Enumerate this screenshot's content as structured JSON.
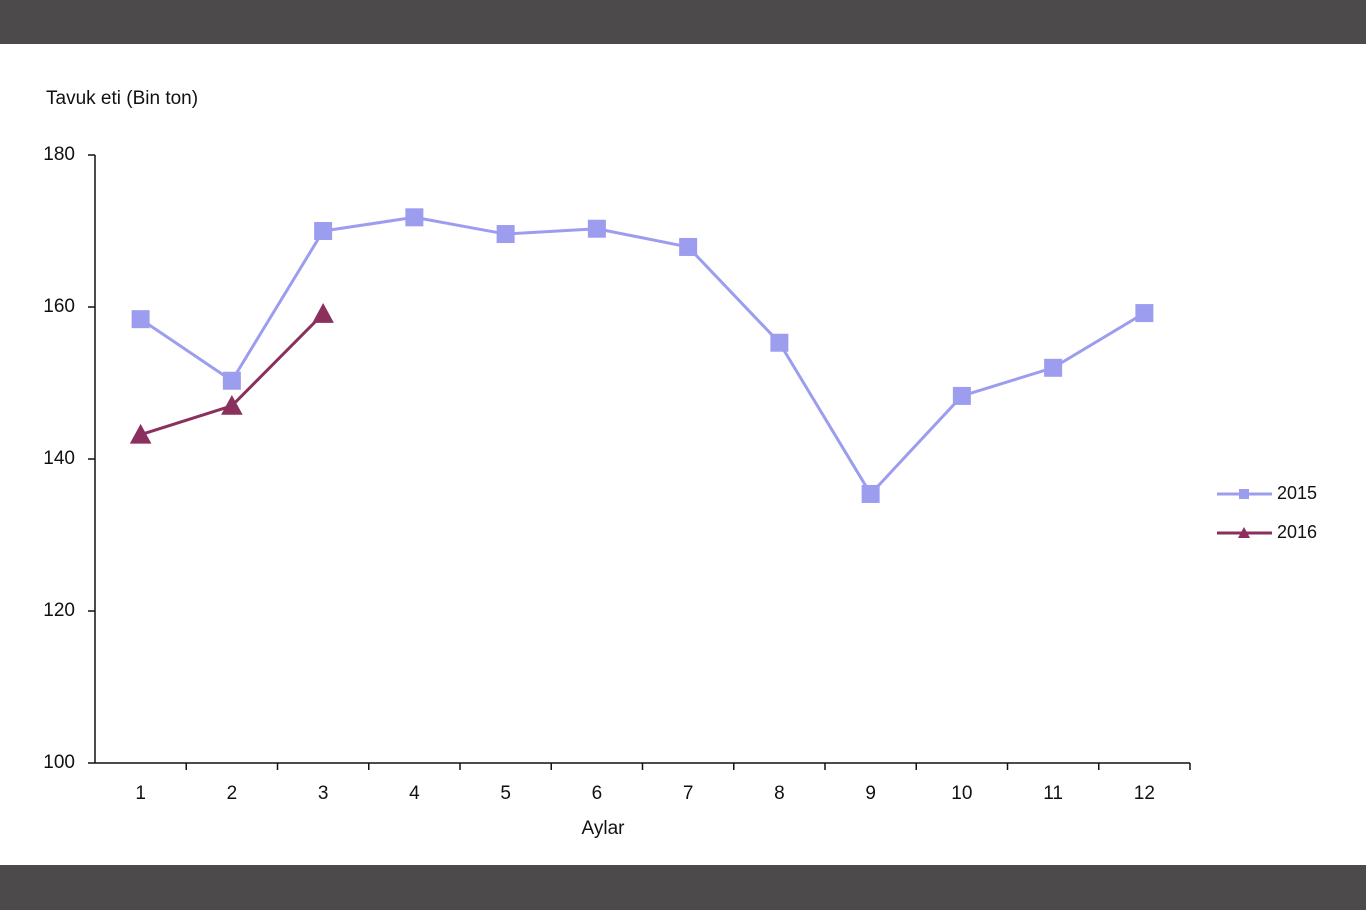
{
  "chart_data": {
    "type": "line",
    "y_label": "Tavuk eti (Bin ton)",
    "x_label": "Aylar",
    "categories": [
      "1",
      "2",
      "3",
      "4",
      "5",
      "6",
      "7",
      "8",
      "9",
      "10",
      "11",
      "12"
    ],
    "series": [
      {
        "name": "2015",
        "color": "#9d9df0",
        "marker": "square",
        "values": [
          158.4,
          150.3,
          170,
          171.8,
          169.6,
          170.3,
          167.9,
          155.3,
          135.4,
          148.3,
          152,
          159.2
        ]
      },
      {
        "name": "2016",
        "color": "#8b2f5c",
        "marker": "triangle",
        "values": [
          143.2,
          147,
          159.1,
          null,
          null,
          null,
          null,
          null,
          null,
          null,
          null,
          null
        ]
      }
    ],
    "ylim": [
      100,
      180
    ],
    "yticks": [
      100,
      120,
      140,
      160,
      180
    ],
    "legend": "right"
  }
}
